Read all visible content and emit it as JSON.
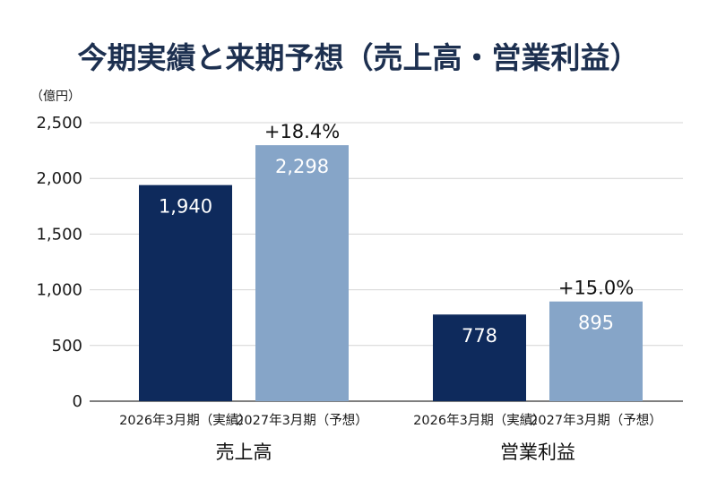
{
  "chart_data": {
    "type": "bar",
    "title": "今期実績と来期予想（売上高・営業利益）",
    "ylabel": "（億円）",
    "ylim": [
      0,
      2500
    ],
    "yticks": [
      0,
      500,
      1000,
      1500,
      2000,
      2500
    ],
    "ytick_labels": [
      "0",
      "500",
      "1,000",
      "1,500",
      "2,000",
      "2,500"
    ],
    "grid": true,
    "groups": [
      {
        "name": "売上高",
        "bars": [
          {
            "category": "2026年3月期（実績）",
            "value": 1940,
            "label": "1,940",
            "color": "#0e2a5c"
          },
          {
            "category": "2027年3月期（予想）",
            "value": 2298,
            "label": "2,298",
            "color": "#86a5c8"
          }
        ],
        "change": "+18.4%"
      },
      {
        "name": "営業利益",
        "bars": [
          {
            "category": "2026年3月期（実績）",
            "value": 778,
            "label": "778",
            "color": "#0e2a5c"
          },
          {
            "category": "2027年3月期（予想）",
            "value": 895,
            "label": "895",
            "color": "#86a5c8"
          }
        ],
        "change": "+15.0%"
      }
    ]
  }
}
